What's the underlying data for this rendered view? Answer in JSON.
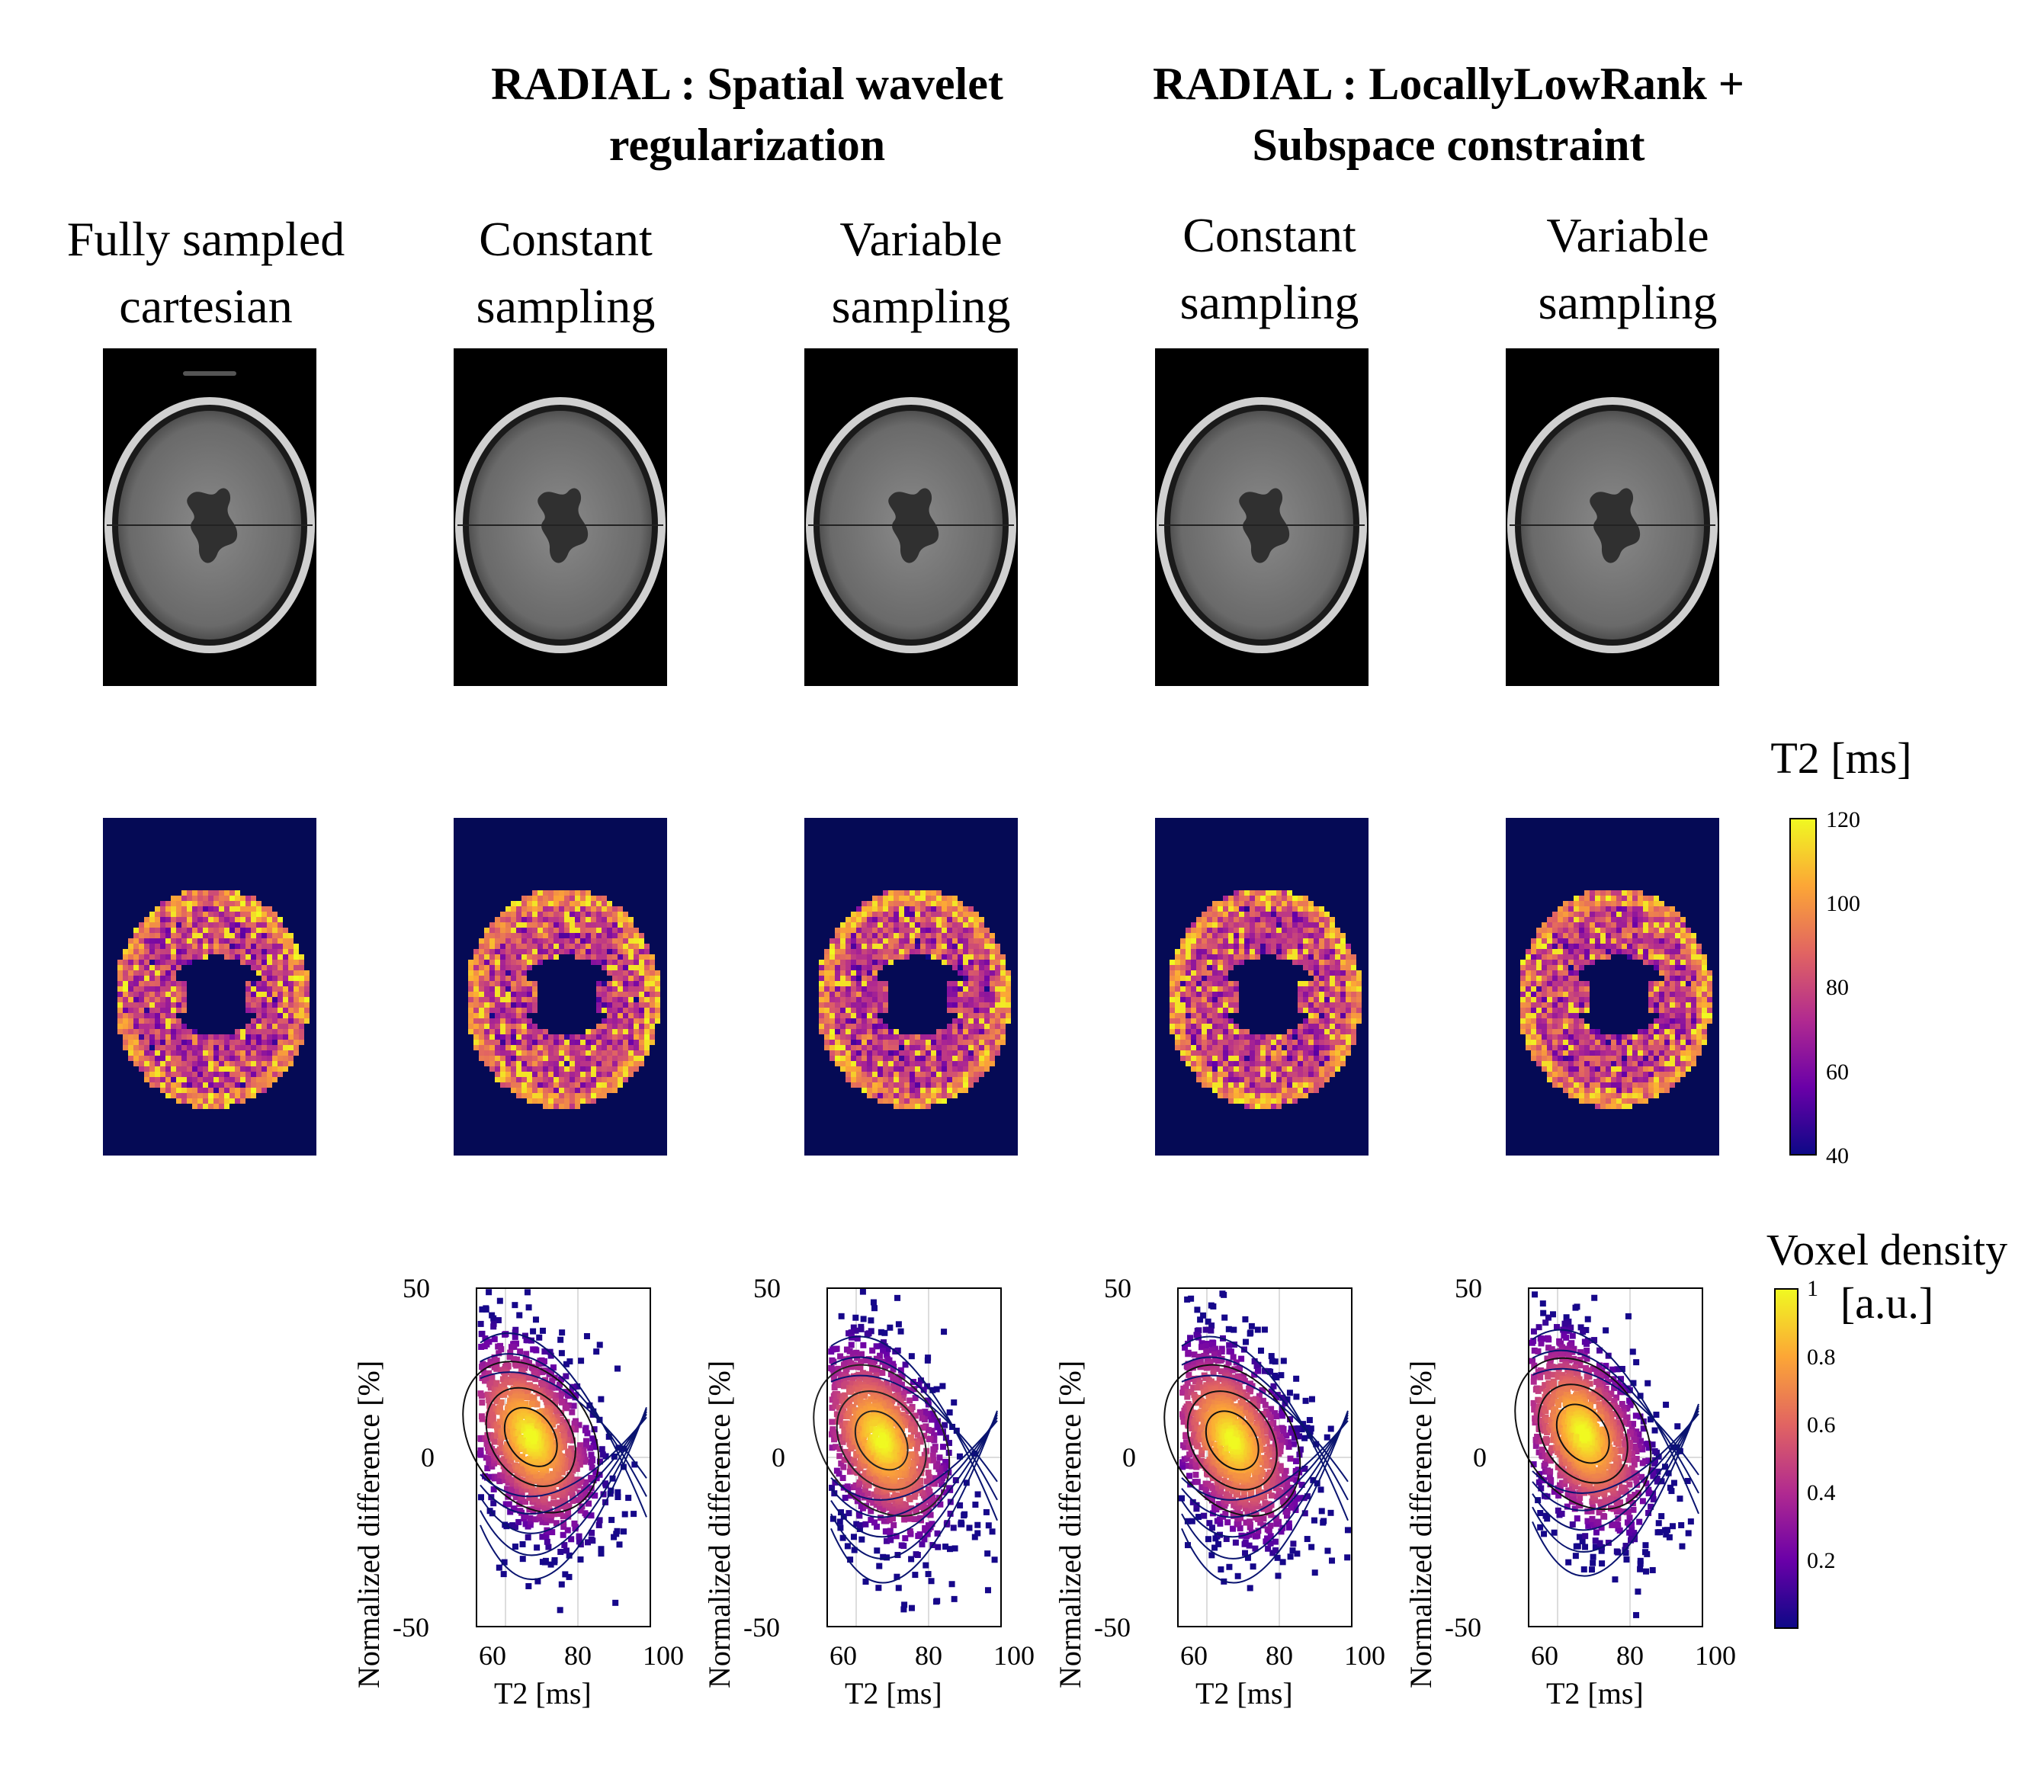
{
  "groups": [
    {
      "label": "RADIAL : Spatial wavelet\nregularization"
    },
    {
      "label": "RADIAL : LocallyLowRank +\nSubspace constraint"
    }
  ],
  "columns": [
    {
      "label": "Fully sampled\ncartesian"
    },
    {
      "label": "Constant\nsampling"
    },
    {
      "label": "Variable\nsampling"
    },
    {
      "label": "Constant\nsampling"
    },
    {
      "label": "Variable\nsampling"
    }
  ],
  "t2_colorbar": {
    "title": "T2 [ms]",
    "ticks": [
      "120",
      "100",
      "80",
      "60",
      "40"
    ]
  },
  "density_colorbar": {
    "title": "Voxel density\n[a.u.]",
    "ticks": [
      "1",
      "0.8",
      "0.6",
      "0.4",
      "0.2"
    ]
  },
  "scatter_axes": {
    "ylabel": "Normalized difference [%]",
    "xlabel": "T2 [ms]",
    "yticks": [
      "50",
      "0",
      "-50"
    ],
    "xticks": [
      "60",
      "80",
      "100"
    ]
  },
  "chart_data": [
    {
      "type": "scatter",
      "title": "Constant sampling (Spatial wavelet)",
      "xlabel": "T2 [ms]",
      "ylabel": "Normalized difference [%]",
      "xlim": [
        52,
        100
      ],
      "ylim": [
        -50,
        50
      ],
      "center": [
        67,
        6
      ]
    },
    {
      "type": "scatter",
      "title": "Variable sampling (Spatial wavelet)",
      "xlabel": "T2 [ms]",
      "ylabel": "Normalized difference [%]",
      "xlim": [
        52,
        100
      ],
      "ylim": [
        -50,
        50
      ],
      "center": [
        67,
        5
      ]
    },
    {
      "type": "scatter",
      "title": "Constant sampling (LocallyLowRank)",
      "xlabel": "T2 [ms]",
      "ylabel": "Normalized difference [%]",
      "xlim": [
        52,
        100
      ],
      "ylim": [
        -50,
        50
      ],
      "center": [
        67,
        5
      ]
    },
    {
      "type": "scatter",
      "title": "Variable sampling (LocallyLowRank)",
      "xlabel": "T2 [ms]",
      "ylabel": "Normalized difference [%]",
      "xlim": [
        52,
        100
      ],
      "ylim": [
        -50,
        50
      ],
      "center": [
        67,
        7
      ]
    }
  ],
  "colors": {
    "map_bg": "#050a55",
    "plot_line": "#0a1470",
    "grid": "#dddddd"
  }
}
